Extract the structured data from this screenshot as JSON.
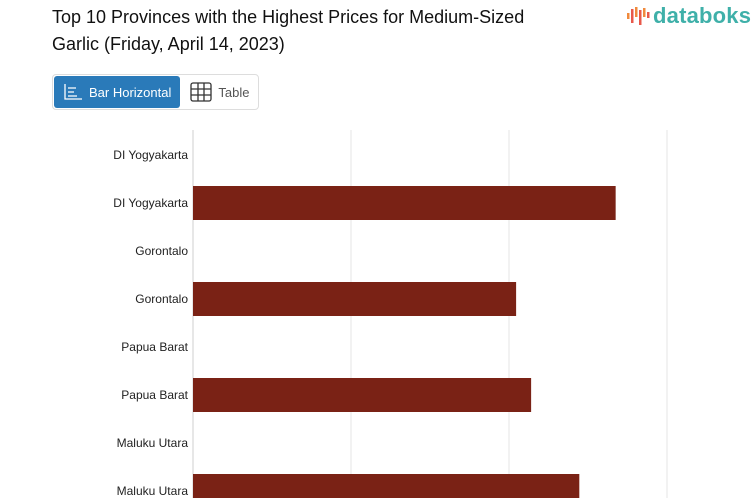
{
  "title": "Top 10 Provinces with the Highest Prices for Medium-Sized Garlic (Friday, April 14, 2023)",
  "logo": "databoks",
  "view_toggle": {
    "bar_label": "Bar Horizontal",
    "table_label": "Table",
    "active": "bar"
  },
  "colors": {
    "bar": "#7a2215",
    "active_button": "#2a7ab9",
    "logo": "#3fb0a9"
  },
  "chart_data": {
    "type": "bar",
    "orientation": "horizontal",
    "title": "Top 10 Provinces with the Highest Prices for Medium-Sized Garlic (Friday, April 14, 2023)",
    "categories": [
      "DI Yogyakarta",
      "DI Yogyakarta",
      "Gorontalo",
      "Gorontalo",
      "Papua Barat",
      "Papua Barat",
      "Maluku Utara",
      "Maluku Utara"
    ],
    "values": [
      null,
      53500,
      null,
      40900,
      null,
      42800,
      null,
      48900
    ],
    "xlim": [
      0,
      60000
    ],
    "grid": true,
    "xlabel": "",
    "ylabel": ""
  }
}
